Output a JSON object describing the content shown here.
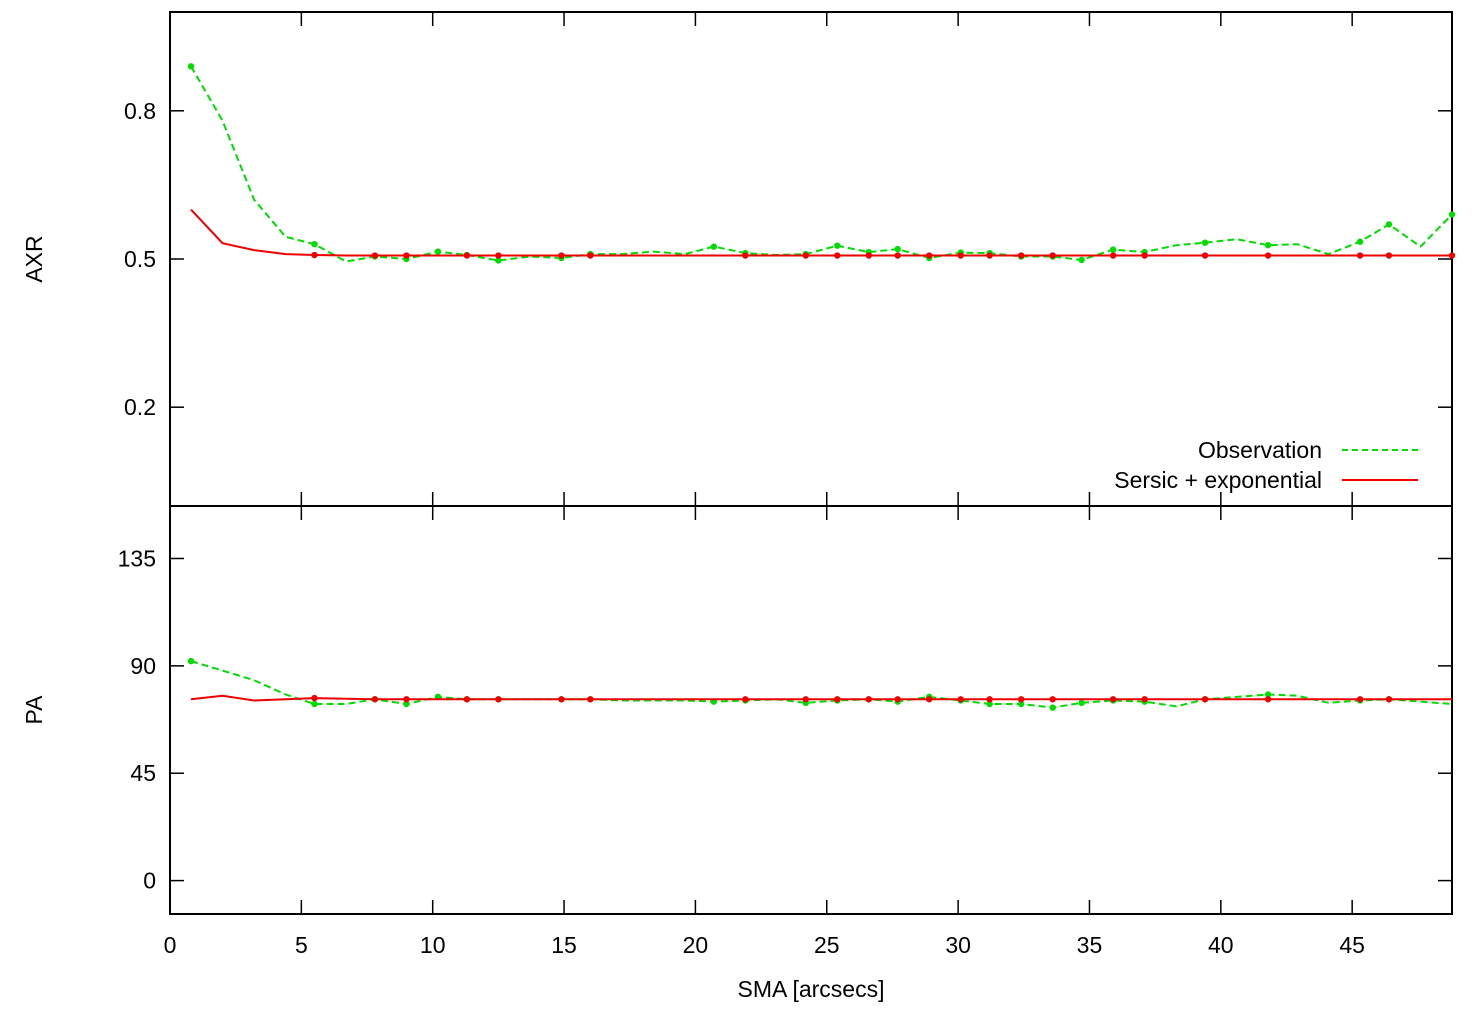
{
  "chart_data": {
    "type": "line",
    "xlabel": "SMA [arcsecs]",
    "xlim": [
      0,
      48.8
    ],
    "xticks": [
      0,
      5,
      10,
      15,
      20,
      25,
      30,
      35,
      40,
      45
    ],
    "colors": {
      "observation": "#00dd00",
      "model": "#ee0000",
      "frame": "#000000"
    },
    "legend": {
      "position": "bottom-right of top panel",
      "entries": [
        {
          "label": "Observation",
          "series": "observation",
          "style": "dashed"
        },
        {
          "label": "Sersic + exponential",
          "series": "model",
          "style": "solid"
        }
      ]
    },
    "panels": [
      {
        "id": "axr",
        "ylabel": "AXR",
        "ylim": [
          0.0,
          1.0
        ],
        "yticks": [
          0.2,
          0.5,
          0.8
        ],
        "ytick_labels": [
          "0.2",
          "0.5",
          "0.8"
        ],
        "series": [
          {
            "name": "Observation",
            "x": [
              0.8,
              2.0,
              3.2,
              4.4,
              5.5,
              6.7,
              7.8,
              9.0,
              10.2,
              11.3,
              12.5,
              13.7,
              14.9,
              16.0,
              17.2,
              18.4,
              19.6,
              20.7,
              21.9,
              23.1,
              24.2,
              25.4,
              26.6,
              27.7,
              28.9,
              30.1,
              31.2,
              32.4,
              33.6,
              34.7,
              35.9,
              37.1,
              38.3,
              39.4,
              40.6,
              41.8,
              42.9,
              44.1,
              45.3,
              46.4,
              47.6,
              48.8
            ],
            "y": [
              0.89,
              0.78,
              0.62,
              0.545,
              0.53,
              0.495,
              0.505,
              0.5,
              0.515,
              0.508,
              0.497,
              0.505,
              0.502,
              0.51,
              0.51,
              0.515,
              0.51,
              0.525,
              0.512,
              0.508,
              0.51,
              0.527,
              0.514,
              0.52,
              0.502,
              0.513,
              0.512,
              0.505,
              0.505,
              0.498,
              0.519,
              0.514,
              0.528,
              0.533,
              0.54,
              0.528,
              0.53,
              0.51,
              0.535,
              0.57,
              0.525,
              0.59
            ],
            "markers_x": [
              0.8,
              5.5,
              7.8,
              9.0,
              10.2,
              11.3,
              12.5,
              14.9,
              16.0,
              20.7,
              21.9,
              24.2,
              25.4,
              26.6,
              27.7,
              28.9,
              30.1,
              31.2,
              32.4,
              33.6,
              34.7,
              35.9,
              37.1,
              39.4,
              41.8,
              45.3,
              46.4,
              48.8
            ]
          },
          {
            "name": "Sersic + exponential",
            "x": [
              0.8,
              2.0,
              3.2,
              4.4,
              5.5,
              6.7,
              7.8,
              9.0,
              10.2,
              11.3,
              12.5,
              13.7,
              14.9,
              16.0,
              17.2,
              18.4,
              19.6,
              20.7,
              21.9,
              23.1,
              24.2,
              25.4,
              26.6,
              27.7,
              28.9,
              30.1,
              31.2,
              32.4,
              33.6,
              34.7,
              35.9,
              37.1,
              38.3,
              39.4,
              40.6,
              41.8,
              42.9,
              44.1,
              45.3,
              46.4,
              47.6,
              48.8
            ],
            "y": [
              0.6,
              0.532,
              0.518,
              0.51,
              0.508,
              0.507,
              0.507,
              0.507,
              0.507,
              0.507,
              0.507,
              0.507,
              0.507,
              0.507,
              0.507,
              0.507,
              0.507,
              0.507,
              0.507,
              0.507,
              0.507,
              0.507,
              0.507,
              0.507,
              0.507,
              0.507,
              0.507,
              0.507,
              0.507,
              0.507,
              0.507,
              0.507,
              0.507,
              0.507,
              0.507,
              0.507,
              0.507,
              0.507,
              0.507,
              0.507,
              0.507,
              0.507
            ],
            "markers_x": [
              5.5,
              7.8,
              9.0,
              11.3,
              12.5,
              14.9,
              16.0,
              21.9,
              24.2,
              25.4,
              26.6,
              27.7,
              28.9,
              30.1,
              31.2,
              32.4,
              33.6,
              35.9,
              37.1,
              39.4,
              41.8,
              45.3,
              46.4,
              48.8
            ]
          }
        ]
      },
      {
        "id": "pa",
        "ylabel": "PA",
        "ylim": [
          -14,
          157
        ],
        "yticks": [
          0,
          45,
          90,
          135
        ],
        "ytick_labels": [
          "0",
          "45",
          "90",
          "135"
        ],
        "series": [
          {
            "name": "Observation",
            "x": [
              0.8,
              2.0,
              3.2,
              4.4,
              5.5,
              6.7,
              7.8,
              9.0,
              10.2,
              11.3,
              12.5,
              13.7,
              14.9,
              16.0,
              17.2,
              18.4,
              19.6,
              20.7,
              21.9,
              23.1,
              24.2,
              25.4,
              26.6,
              27.7,
              28.9,
              30.1,
              31.2,
              32.4,
              33.6,
              34.7,
              35.9,
              37.1,
              38.3,
              39.4,
              40.6,
              41.8,
              42.9,
              44.1,
              45.3,
              46.4,
              47.6,
              48.8
            ],
            "y": [
              92,
              88,
              84,
              78,
              74,
              74,
              76,
              74,
              77,
              76,
              76,
              76,
              76,
              76,
              75.5,
              75.5,
              75.5,
              75,
              75.5,
              76,
              74.5,
              75.5,
              76,
              75,
              77,
              75.5,
              74,
              74,
              72.5,
              74.5,
              75.5,
              75,
              73,
              76,
              77,
              78,
              77.5,
              74.5,
              75.5,
              76,
              75,
              74
            ],
            "markers_x": [
              0.8,
              5.5,
              7.8,
              9.0,
              10.2,
              11.3,
              12.5,
              14.9,
              16.0,
              20.7,
              21.9,
              24.2,
              25.4,
              26.6,
              27.7,
              28.9,
              30.1,
              31.2,
              32.4,
              33.6,
              34.7,
              35.9,
              37.1,
              39.4,
              41.8,
              45.3,
              46.4
            ]
          },
          {
            "name": "Sersic + exponential",
            "x": [
              0.8,
              2.0,
              3.2,
              4.4,
              5.5,
              6.7,
              7.8,
              9.0,
              10.2,
              11.3,
              12.5,
              13.7,
              14.9,
              16.0,
              17.2,
              18.4,
              19.6,
              20.7,
              21.9,
              23.1,
              24.2,
              25.4,
              26.6,
              27.7,
              28.9,
              30.1,
              31.2,
              32.4,
              33.6,
              34.7,
              35.9,
              37.1,
              38.3,
              39.4,
              40.6,
              41.8,
              42.9,
              44.1,
              45.3,
              46.4,
              47.6,
              48.8
            ],
            "y": [
              76,
              77.5,
              75.5,
              76,
              76.5,
              76.2,
              76,
              76,
              76,
              76,
              76,
              76,
              76,
              76,
              76,
              76,
              76,
              76,
              76,
              76,
              76,
              76,
              76,
              76,
              76,
              76,
              76,
              76,
              76,
              76,
              76,
              76,
              76,
              76,
              76,
              76,
              76,
              76,
              76,
              76,
              76,
              76
            ],
            "markers_x": [
              5.5,
              7.8,
              9.0,
              11.3,
              12.5,
              14.9,
              16.0,
              21.9,
              24.2,
              25.4,
              26.6,
              27.7,
              28.9,
              30.1,
              31.2,
              32.4,
              33.6,
              35.9,
              37.1,
              39.4,
              41.8,
              45.3,
              46.4
            ]
          }
        ]
      }
    ]
  }
}
